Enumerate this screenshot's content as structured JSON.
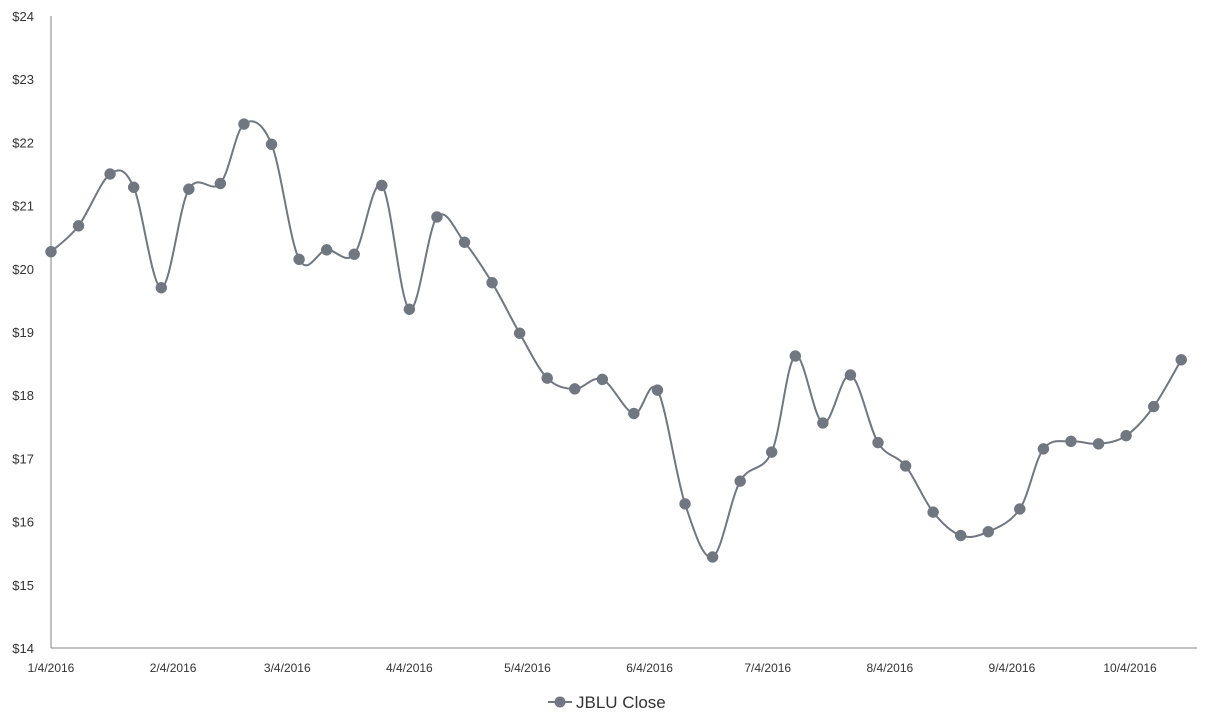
{
  "chart_data": {
    "type": "line",
    "title": "",
    "xlabel": "",
    "ylabel": "",
    "ylim": [
      14,
      24
    ],
    "yticks": [
      14,
      15,
      16,
      17,
      18,
      19,
      20,
      21,
      22,
      23,
      24
    ],
    "ytick_labels": [
      "$14",
      "$15",
      "$16",
      "$17",
      "$18",
      "$19",
      "$20",
      "$21",
      "$22",
      "$23",
      "$24"
    ],
    "xlim": [
      "2016-01-04",
      "2016-10-21"
    ],
    "xtick_dates": [
      "2016-01-04",
      "2016-02-04",
      "2016-03-04",
      "2016-04-04",
      "2016-05-04",
      "2016-06-04",
      "2016-07-04",
      "2016-08-04",
      "2016-09-04",
      "2016-10-04"
    ],
    "xtick_labels": [
      "1/4/2016",
      "2/4/2016",
      "3/4/2016",
      "4/4/2016",
      "5/4/2016",
      "6/4/2016",
      "7/4/2016",
      "8/4/2016",
      "9/4/2016",
      "10/4/2016"
    ],
    "grid": false,
    "legend_position": "bottom",
    "series": [
      {
        "name": "JBLU Close",
        "color": "#707780",
        "smooth": true,
        "marker": "circle",
        "x": [
          "2016-01-04",
          "2016-01-11",
          "2016-01-19",
          "2016-01-25",
          "2016-02-01",
          "2016-02-08",
          "2016-02-16",
          "2016-02-22",
          "2016-02-29",
          "2016-03-07",
          "2016-03-14",
          "2016-03-21",
          "2016-03-28",
          "2016-04-04",
          "2016-04-11",
          "2016-04-18",
          "2016-04-25",
          "2016-05-02",
          "2016-05-09",
          "2016-05-16",
          "2016-05-23",
          "2016-05-31",
          "2016-06-06",
          "2016-06-13",
          "2016-06-20",
          "2016-06-27",
          "2016-07-05",
          "2016-07-11",
          "2016-07-18",
          "2016-07-25",
          "2016-08-01",
          "2016-08-08",
          "2016-08-15",
          "2016-08-22",
          "2016-08-29",
          "2016-09-06",
          "2016-09-12",
          "2016-09-19",
          "2016-09-26",
          "2016-10-03",
          "2016-10-10",
          "2016-10-17"
        ],
        "values": [
          20.27,
          20.68,
          21.5,
          21.29,
          19.7,
          21.26,
          21.35,
          22.29,
          21.97,
          20.15,
          20.3,
          20.23,
          21.32,
          19.36,
          20.82,
          20.42,
          19.78,
          18.98,
          18.27,
          18.1,
          18.25,
          17.71,
          18.08,
          16.28,
          15.44,
          16.64,
          17.1,
          18.62,
          17.56,
          18.32,
          17.25,
          16.88,
          16.15,
          15.78,
          15.84,
          16.2,
          17.15,
          17.27,
          17.23,
          17.36,
          17.82,
          18.56
        ]
      }
    ]
  }
}
